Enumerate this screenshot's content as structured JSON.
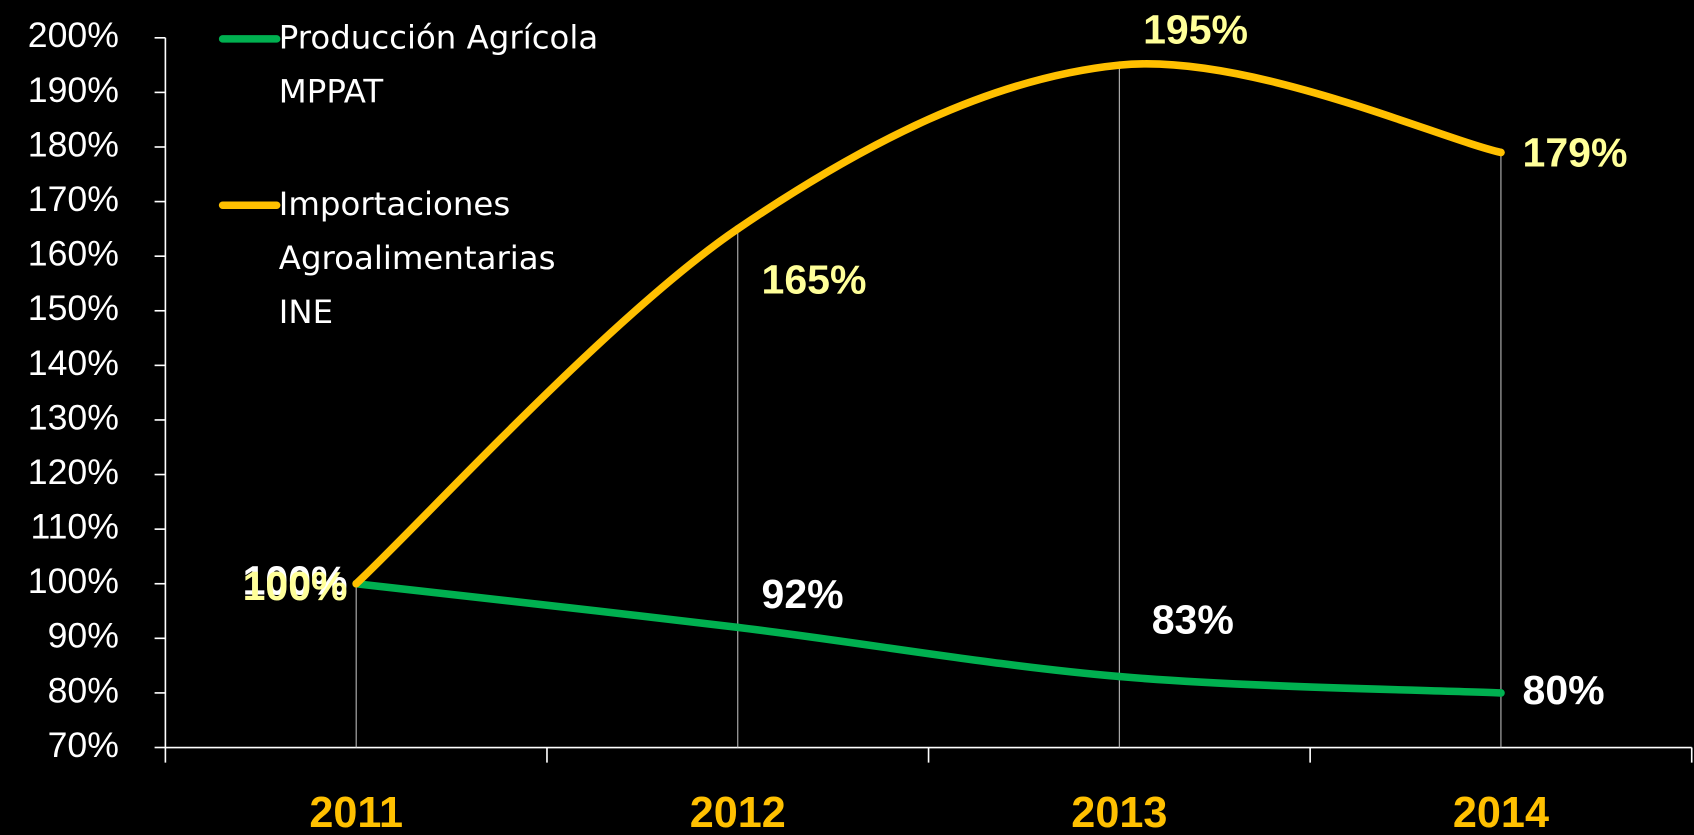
{
  "chart_data": {
    "type": "line",
    "categories": [
      "2011",
      "2012",
      "2013",
      "2014"
    ],
    "series": [
      {
        "name": "Producción Agrícola\nMPPAT",
        "color": "#00b050",
        "values": [
          100,
          92,
          83,
          80
        ],
        "value_labels": [
          "100%",
          "92%",
          "83%",
          "80%"
        ]
      },
      {
        "name": "Importaciones\nAgroalimentarias\nINE",
        "color": "#ffc000",
        "values": [
          100,
          165,
          195,
          179
        ],
        "value_labels": [
          "100%",
          "165%",
          "195%",
          "179%"
        ]
      }
    ],
    "ylim": [
      70,
      200
    ],
    "yticks": [
      {
        "value": 70,
        "label": "70%"
      },
      {
        "value": 80,
        "label": "80%"
      },
      {
        "value": 90,
        "label": "90%"
      },
      {
        "value": 100,
        "label": "100%"
      },
      {
        "value": 110,
        "label": "110%"
      },
      {
        "value": 120,
        "label": "120%"
      },
      {
        "value": 130,
        "label": "130%"
      },
      {
        "value": 140,
        "label": "140%"
      },
      {
        "value": 150,
        "label": "150%"
      },
      {
        "value": 160,
        "label": "160%"
      },
      {
        "value": 170,
        "label": "170%"
      },
      {
        "value": 180,
        "label": "180%"
      },
      {
        "value": 190,
        "label": "190%"
      },
      {
        "value": 200,
        "label": "200%"
      }
    ],
    "legend": "upper left"
  }
}
